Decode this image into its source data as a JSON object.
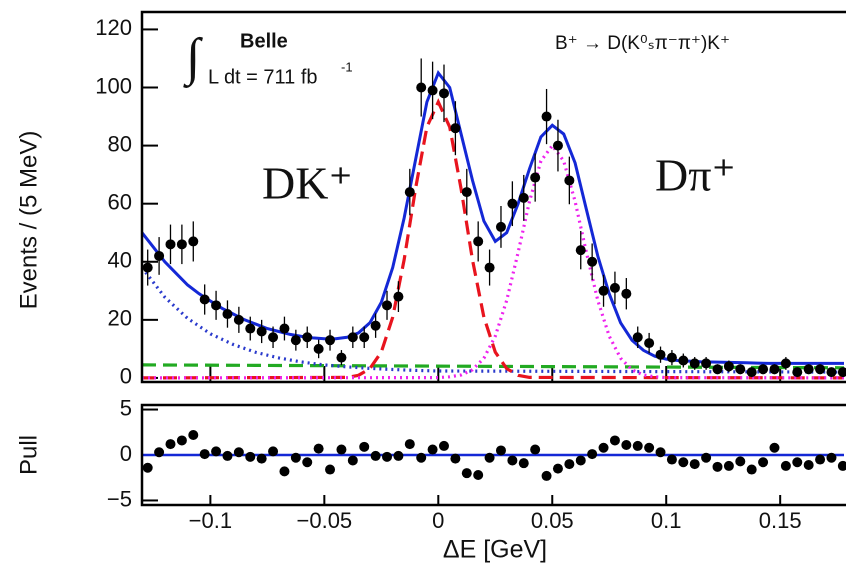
{
  "chart_data": [
    {
      "type": "scatter",
      "y_label": "Events / (5 MeV)",
      "experiment": "Belle",
      "lumi_integral": "∫",
      "lumi": "L dt = 711 fb",
      "lumi_exponent": "-1",
      "process": "B⁺ → D(K⁰ₛπ⁻π⁺)K⁺",
      "annotations": [
        {
          "text": "DK⁺",
          "color": "#e8141e"
        },
        {
          "text": "Dπ⁺",
          "color": "#ee22ee"
        }
      ],
      "xlim": [
        -0.13,
        0.178
      ],
      "ylim": [
        -1.4,
        126
      ],
      "yticks": [
        0,
        20,
        40,
        60,
        80,
        100,
        120
      ],
      "series": [
        {
          "color": "#000000",
          "x": [
            -0.1275,
            -0.1225,
            -0.1175,
            -0.1125,
            -0.1075,
            -0.1025,
            -0.0975,
            -0.0925,
            -0.0875,
            -0.0825,
            -0.0775,
            -0.0725,
            -0.0675,
            -0.0625,
            -0.0575,
            -0.0525,
            -0.0475,
            -0.0425,
            -0.0375,
            -0.0325,
            -0.0275,
            -0.0225,
            -0.0175,
            -0.0125,
            -0.0075,
            -0.0025,
            0.0025,
            0.0075,
            0.0125,
            0.0175,
            0.0225,
            0.0275,
            0.0325,
            0.0375,
            0.0425,
            0.0475,
            0.0525,
            0.0575,
            0.0625,
            0.0675,
            0.0725,
            0.0775,
            0.0825,
            0.0875,
            0.0925,
            0.0975,
            0.1025,
            0.1075,
            0.1125,
            0.1175,
            0.1225,
            0.1275,
            0.1325,
            0.1375,
            0.1425,
            0.1475,
            0.1525,
            0.1575,
            0.1625,
            0.1675,
            0.1725,
            0.1775
          ],
          "values": [
            38,
            42,
            46,
            46,
            47,
            27,
            25,
            22,
            20,
            17,
            16,
            14,
            17,
            13,
            14,
            10,
            13,
            7,
            14,
            14,
            18,
            25,
            28,
            64,
            100,
            99,
            98,
            86,
            64,
            47,
            38,
            52,
            60,
            62,
            69,
            90,
            80,
            68,
            44,
            40,
            30,
            31,
            29,
            14,
            12,
            8,
            7,
            6,
            5,
            5,
            3,
            4,
            3,
            2,
            3,
            3,
            5,
            2,
            3,
            3,
            2,
            2
          ],
          "errors": [
            6.2,
            6.5,
            6.8,
            6.8,
            6.9,
            5.2,
            5,
            4.7,
            4.5,
            4.1,
            4,
            3.7,
            4.1,
            3.6,
            3.7,
            3.2,
            3.6,
            2.6,
            3.7,
            3.7,
            4.2,
            5,
            5.3,
            8,
            10,
            9.9,
            9.9,
            9.3,
            8,
            6.9,
            6.2,
            7.2,
            7.7,
            7.9,
            8.3,
            9.5,
            8.9,
            8.2,
            6.6,
            6.3,
            5.5,
            5.6,
            5.4,
            3.7,
            3.5,
            2.8,
            2.6,
            2.4,
            2.2,
            2.2,
            1.7,
            2,
            1.7,
            1.4,
            1.7,
            1.7,
            2.2,
            1.4,
            1.7,
            1.7,
            1.4,
            1.4
          ]
        }
      ],
      "curves": [
        {
          "color": "#22aa22",
          "style": "dashed",
          "x": [
            -0.13,
            0.178
          ],
          "values": [
            4.5,
            3.5
          ]
        },
        {
          "color": "#2a3acc",
          "style": "dotted",
          "x": [
            -0.13,
            -0.12,
            -0.11,
            -0.1,
            -0.09,
            -0.08,
            -0.07,
            -0.06,
            -0.05,
            -0.04,
            -0.03,
            -0.02,
            -0.01,
            0,
            0.178
          ],
          "values": [
            38,
            27.8,
            20.5,
            15.2,
            11.5,
            8.8,
            6.9,
            5.5,
            4.5,
            3.8,
            3.3,
            2.9,
            2.6,
            2.4,
            2.0
          ]
        },
        {
          "color": "#e8141e",
          "style": "dashed",
          "x": [
            -0.13,
            -0.04,
            -0.035,
            -0.03,
            -0.025,
            -0.02,
            -0.015,
            -0.01,
            -0.005,
            0,
            0.005,
            0.01,
            0.015,
            0.02,
            0.025,
            0.03,
            0.035,
            0.04,
            0.178
          ],
          "values": [
            0,
            0.2,
            0.9,
            3.2,
            8.9,
            20.9,
            40.6,
            65.1,
            86.4,
            95,
            86.4,
            65.1,
            40.6,
            20.9,
            8.9,
            3.2,
            0.9,
            0.2,
            0
          ]
        },
        {
          "color": "#ee22ee",
          "style": "dotted",
          "x": [
            -0.13,
            0,
            0.005,
            0.01,
            0.015,
            0.02,
            0.025,
            0.03,
            0.035,
            0.04,
            0.045,
            0.05,
            0.055,
            0.06,
            0.065,
            0.07,
            0.075,
            0.08,
            0.085,
            0.09,
            0.095,
            0.1,
            0.178
          ],
          "values": [
            0,
            0.1,
            0.4,
            1.0,
            2.8,
            6.8,
            14.4,
            26.7,
            43.2,
            60.8,
            74.7,
            80,
            74.7,
            60.8,
            43.2,
            26.7,
            14.4,
            6.8,
            2.8,
            1.0,
            0.4,
            0.1,
            0
          ]
        },
        {
          "color": "#1428d6",
          "style": "solid",
          "x": [
            -0.13,
            -0.125,
            -0.12,
            -0.115,
            -0.11,
            -0.105,
            -0.1,
            -0.095,
            -0.09,
            -0.085,
            -0.08,
            -0.075,
            -0.07,
            -0.065,
            -0.06,
            -0.055,
            -0.05,
            -0.045,
            -0.04,
            -0.035,
            -0.03,
            -0.025,
            -0.02,
            -0.015,
            -0.01,
            -0.005,
            0,
            0.005,
            0.01,
            0.015,
            0.02,
            0.025,
            0.03,
            0.035,
            0.04,
            0.045,
            0.05,
            0.055,
            0.06,
            0.065,
            0.07,
            0.075,
            0.08,
            0.085,
            0.09,
            0.095,
            0.1,
            0.105,
            0.11,
            0.115,
            0.12,
            0.125,
            0.13,
            0.135,
            0.14,
            0.145,
            0.15,
            0.155,
            0.16,
            0.165,
            0.17,
            0.175,
            0.178
          ],
          "values": [
            50,
            45,
            40,
            36,
            32,
            29,
            26.5,
            24,
            22,
            20,
            18.5,
            17,
            16,
            15,
            14.3,
            13.8,
            13.5,
            13.5,
            14,
            15.5,
            19,
            26,
            38,
            55,
            75,
            95,
            105,
            100,
            84,
            68,
            54,
            47,
            50,
            60,
            72,
            83,
            87,
            84,
            74,
            58,
            42,
            29,
            19,
            13,
            9.5,
            7.5,
            6.5,
            6,
            5.8,
            5.6,
            5.5,
            5.4,
            5.3,
            5.2,
            5.1,
            5,
            5,
            5,
            5,
            5,
            5,
            5,
            5
          ]
        }
      ]
    },
    {
      "type": "scatter",
      "x_label": "ΔE [GeV]",
      "y_label": "Pull",
      "xlim": [
        -0.13,
        0.178
      ],
      "ylim": [
        -5.5,
        5.5
      ],
      "xticks": [
        {
          "value": -0.1,
          "label": "−0.1"
        },
        {
          "value": -0.05,
          "label": "−0.05"
        },
        0,
        0.05,
        0.1,
        0.15
      ],
      "yticks": [
        {
          "value": -5,
          "label": "−5"
        },
        0,
        5
      ],
      "zero_line_color": "#1428d6",
      "series": [
        {
          "color": "#000000",
          "x": [
            -0.1275,
            -0.1225,
            -0.1175,
            -0.1125,
            -0.1075,
            -0.1025,
            -0.0975,
            -0.0925,
            -0.0875,
            -0.0825,
            -0.0775,
            -0.0725,
            -0.0675,
            -0.0625,
            -0.0575,
            -0.0525,
            -0.0475,
            -0.0425,
            -0.0375,
            -0.0325,
            -0.0275,
            -0.0225,
            -0.0175,
            -0.0125,
            -0.0075,
            -0.0025,
            0.0025,
            0.0075,
            0.0125,
            0.0175,
            0.0225,
            0.0275,
            0.0325,
            0.0375,
            0.0425,
            0.0475,
            0.0525,
            0.0575,
            0.0625,
            0.0675,
            0.0725,
            0.0775,
            0.0825,
            0.0875,
            0.0925,
            0.0975,
            0.1025,
            0.1075,
            0.1125,
            0.1175,
            0.1225,
            0.1275,
            0.1325,
            0.1375,
            0.1425,
            0.1475,
            0.1525,
            0.1575,
            0.1625,
            0.1675,
            0.1725,
            0.1775
          ],
          "values": [
            -1.4,
            0.3,
            1.2,
            1.6,
            2.2,
            0.1,
            0.4,
            -0.1,
            0.3,
            -0.2,
            -0.4,
            0.4,
            -1.8,
            -0.3,
            -0.8,
            0.7,
            -1.6,
            0.6,
            -0.6,
            0.9,
            -0.1,
            -0.2,
            -0.1,
            1.2,
            -0.3,
            0.6,
            1.0,
            -0.4,
            -2.0,
            -2.2,
            -0.3,
            0.5,
            -0.6,
            -0.9,
            0.6,
            -2.3,
            -1.5,
            -1.0,
            -0.6,
            0.1,
            0.8,
            1.6,
            1.1,
            1.0,
            0.8,
            0.3,
            -0.5,
            -0.8,
            -1.0,
            -0.3,
            -1.3,
            -1.2,
            -0.7,
            -1.6,
            -0.8,
            0.8,
            -1.2,
            -0.8,
            -1.1,
            -0.5,
            -0.3,
            -1.2
          ]
        }
      ]
    }
  ]
}
